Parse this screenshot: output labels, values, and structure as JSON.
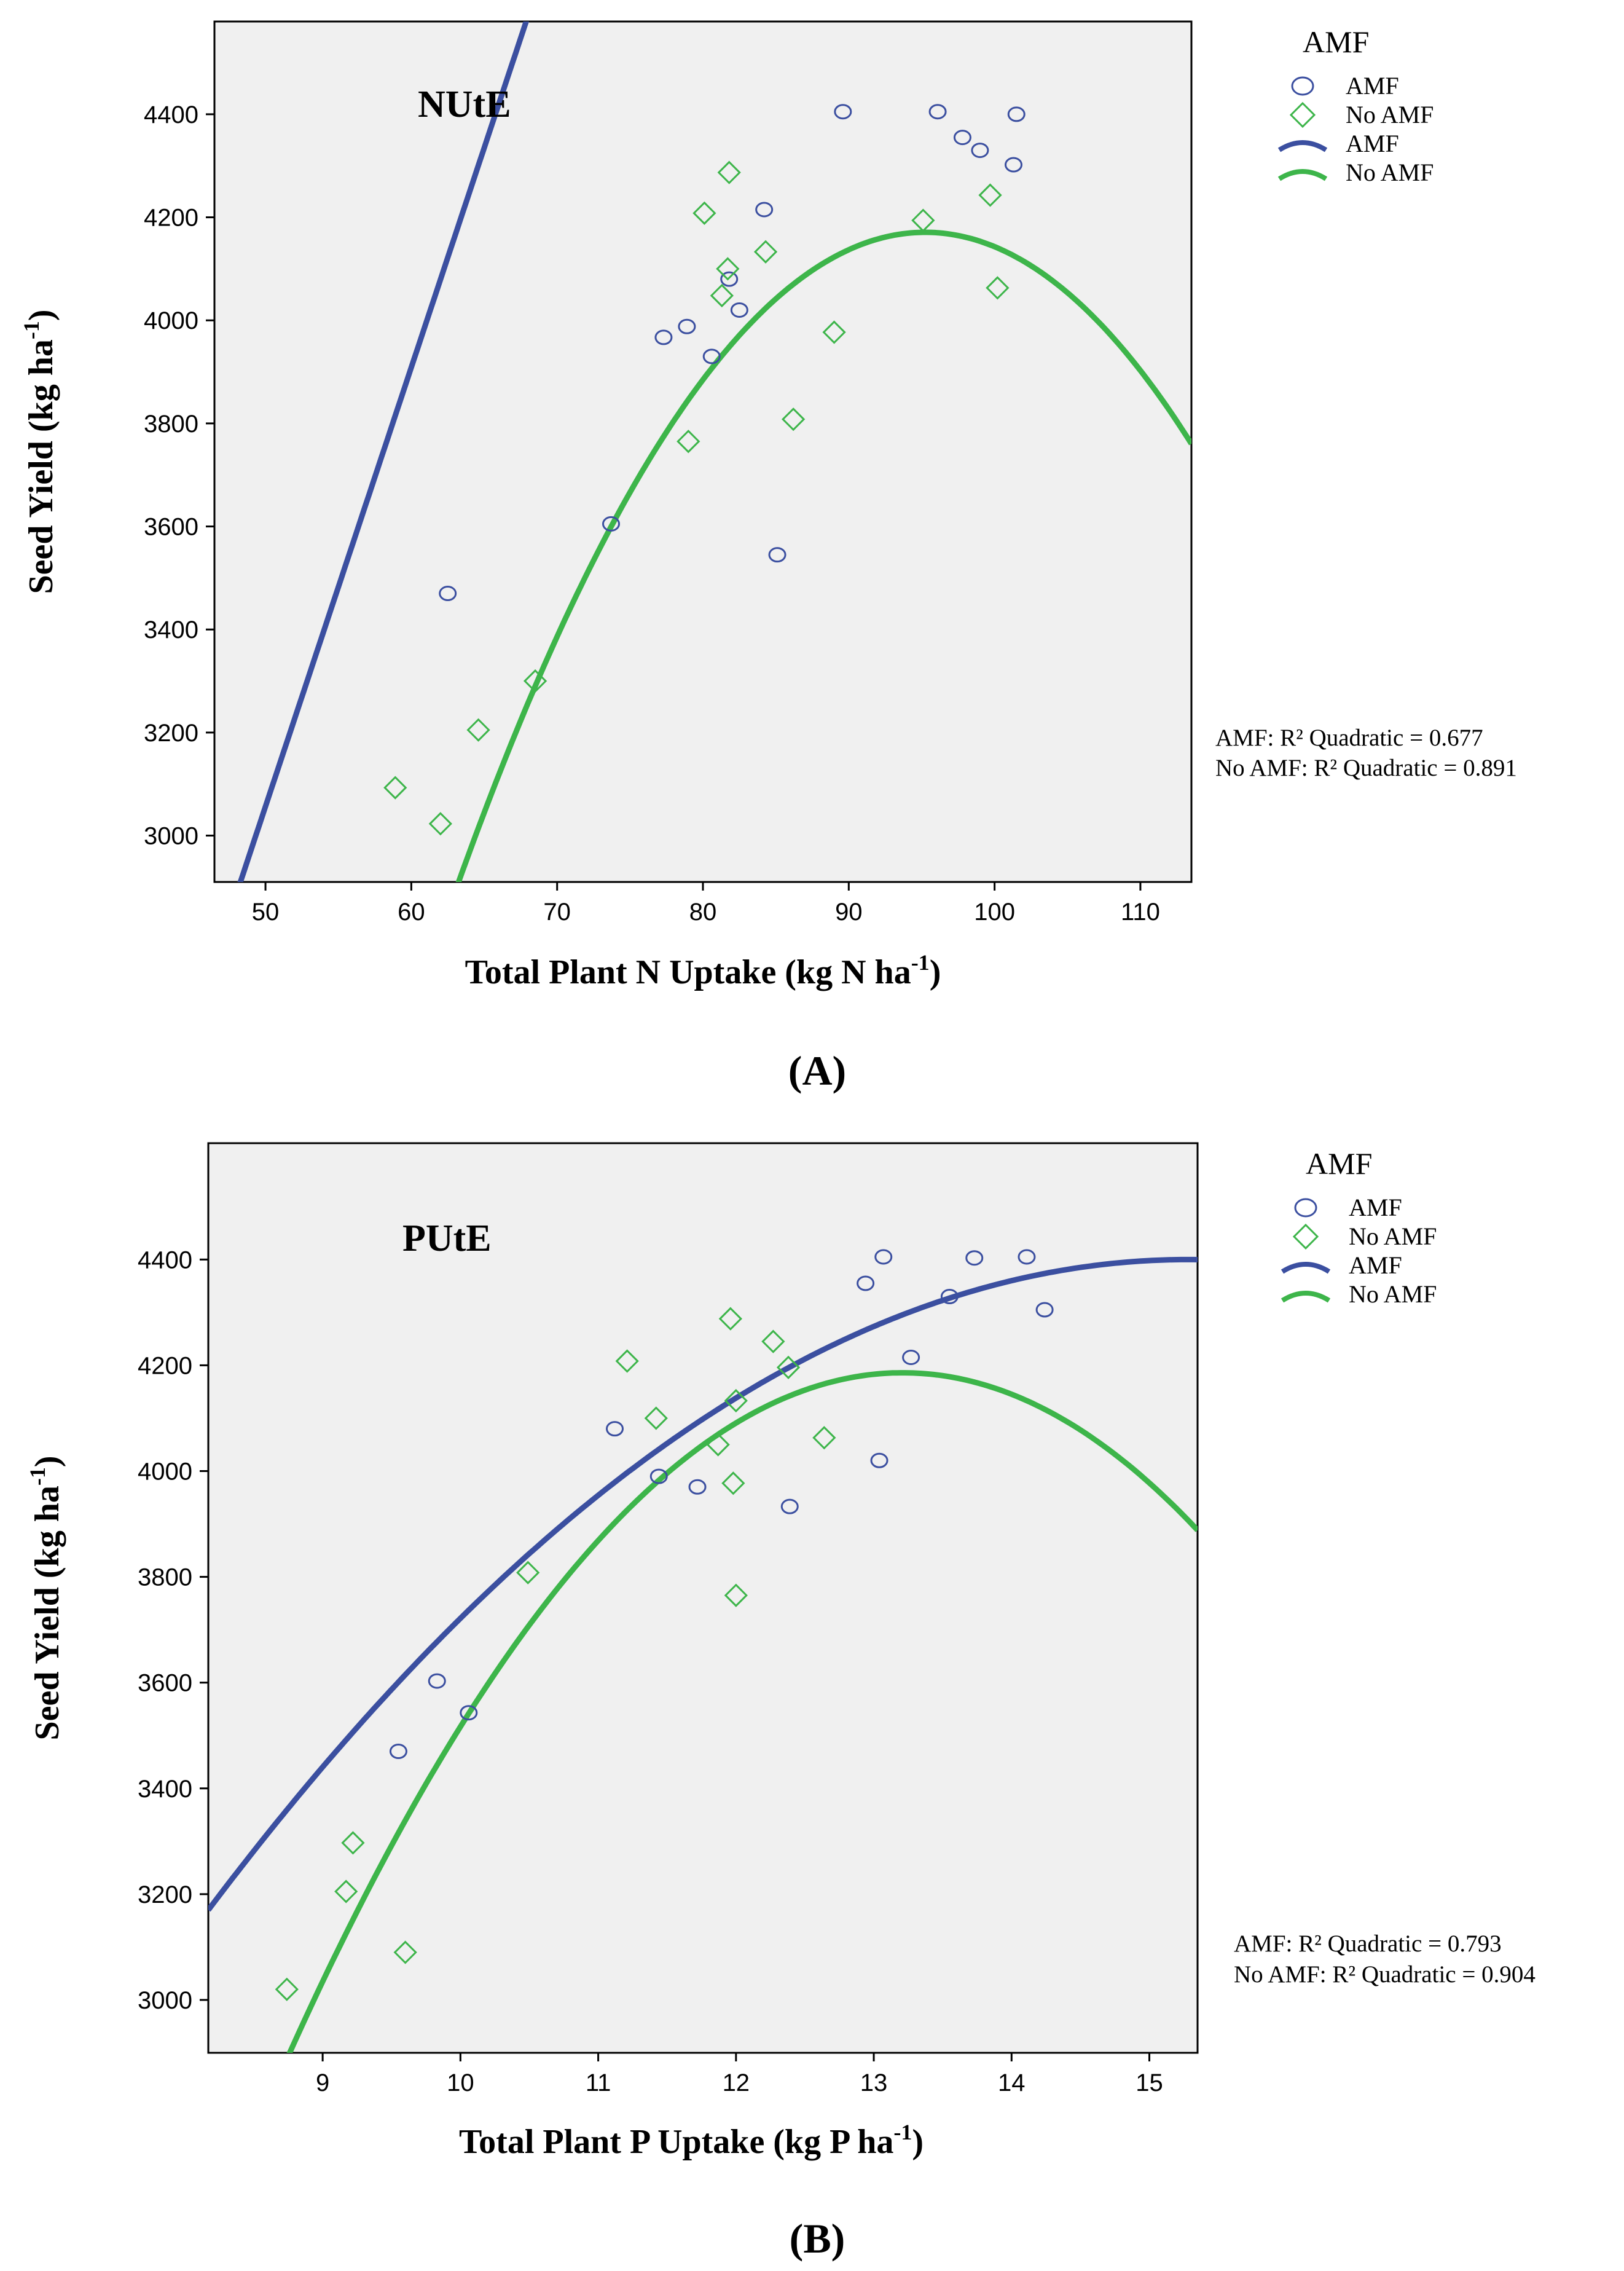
{
  "colors": {
    "amf": "#3B4FA0",
    "no_amf": "#3DB54A",
    "plot_bg": "#F0F0F0",
    "axis": "#000000",
    "text": "#000000"
  },
  "chart_data": [
    {
      "type": "scatter",
      "panel_label": "(A)",
      "title": "NUtE",
      "xlabel": "Total Plant N Uptake (kg N ha",
      "xlabel_sup": "-1",
      "xlabel_close": ")",
      "ylabel": "Seed Yield (kg ha",
      "ylabel_sup": "-1",
      "ylabel_close": ")",
      "xlim": [
        46.5,
        113.5
      ],
      "ylim": [
        2910,
        4580
      ],
      "xticks": [
        50,
        60,
        70,
        80,
        90,
        100,
        110
      ],
      "yticks": [
        3000,
        3200,
        3400,
        3600,
        3800,
        4000,
        4200,
        4400
      ],
      "legend_title": "AMF",
      "legend": [
        {
          "label": "AMF",
          "kind": "circle",
          "series": "amf"
        },
        {
          "label": "No AMF",
          "kind": "diamond",
          "series": "no_amf"
        },
        {
          "label": "AMF",
          "kind": "line",
          "series": "amf"
        },
        {
          "label": "No AMF",
          "kind": "line",
          "series": "no_amf"
        }
      ],
      "r2_text": [
        "AMF: R² Quadratic = 0.677",
        "No AMF: R² Quadratic = 0.891"
      ],
      "series": [
        {
          "name": "AMF",
          "marker": "circle",
          "points": [
            [
              62.5,
              3470
            ],
            [
              73.7,
              3605
            ],
            [
              77.3,
              3967
            ],
            [
              78.9,
              3988
            ],
            [
              80.6,
              3930
            ],
            [
              81.8,
              4080
            ],
            [
              82.5,
              4020
            ],
            [
              84.2,
              4215
            ],
            [
              85.1,
              3545
            ],
            [
              89.6,
              4405
            ],
            [
              96.1,
              4405
            ],
            [
              97.8,
              4355
            ],
            [
              99.0,
              4330
            ],
            [
              101.3,
              4302
            ],
            [
              101.5,
              4400
            ]
          ],
          "fit": {
            "type": "quadratic",
            "coef": [
              -1210,
              85.41,
              -0.00161
            ]
          }
        },
        {
          "name": "No AMF",
          "marker": "diamond",
          "points": [
            [
              58.9,
              3093
            ],
            [
              62.0,
              3023
            ],
            [
              64.6,
              3205
            ],
            [
              68.5,
              3300
            ],
            [
              79.0,
              3765
            ],
            [
              80.1,
              4208
            ],
            [
              81.3,
              4048
            ],
            [
              81.7,
              4100
            ],
            [
              81.8,
              4287
            ],
            [
              84.3,
              4133
            ],
            [
              86.2,
              3808
            ],
            [
              89.0,
              3977
            ],
            [
              95.1,
              4194
            ],
            [
              99.7,
              4243
            ],
            [
              100.2,
              4063
            ]
          ],
          "fit": {
            "type": "quadratic",
            "coef": [
              -7000,
              234.58,
              -1.2315
            ]
          }
        }
      ]
    },
    {
      "type": "scatter",
      "panel_label": "(B)",
      "title": "PUtE",
      "xlabel": "Total Plant P Uptake (kg P ha",
      "xlabel_sup": "-1",
      "xlabel_close": ")",
      "ylabel": "Seed Yield (kg ha",
      "ylabel_sup": "-1",
      "ylabel_close": ")",
      "xlim": [
        8.17,
        15.35
      ],
      "ylim": [
        2900,
        4620
      ],
      "xticks": [
        9,
        10,
        11,
        12,
        13,
        14,
        15
      ],
      "yticks": [
        3000,
        3200,
        3400,
        3600,
        3800,
        4000,
        4200,
        4400
      ],
      "legend_title": "AMF",
      "legend": [
        {
          "label": "AMF",
          "kind": "circle",
          "series": "amf"
        },
        {
          "label": "No AMF",
          "kind": "diamond",
          "series": "no_amf"
        },
        {
          "label": "AMF",
          "kind": "line",
          "series": "amf"
        },
        {
          "label": "No AMF",
          "kind": "line",
          "series": "no_amf"
        }
      ],
      "r2_text": [
        "AMF: R² Quadratic = 0.793",
        "No AMF: R² Quadratic = 0.904"
      ],
      "series": [
        {
          "name": "AMF",
          "marker": "circle",
          "points": [
            [
              9.55,
              3470
            ],
            [
              9.83,
              3603
            ],
            [
              10.06,
              3543
            ],
            [
              11.12,
              4080
            ],
            [
              11.44,
              3990
            ],
            [
              11.72,
              3970
            ],
            [
              12.39,
              3933
            ],
            [
              12.94,
              4355
            ],
            [
              13.04,
              4020
            ],
            [
              13.07,
              4405
            ],
            [
              13.27,
              4215
            ],
            [
              13.55,
              4330
            ],
            [
              13.73,
              4403
            ],
            [
              14.11,
              4405
            ],
            [
              14.24,
              4305
            ]
          ],
          "fit": {
            "type": "quadratic",
            "coef": [
              -1280,
              743.41,
              -24.325
            ]
          }
        },
        {
          "name": "No AMF",
          "marker": "diamond",
          "points": [
            [
              8.74,
              3020
            ],
            [
              9.17,
              3205
            ],
            [
              9.22,
              3297
            ],
            [
              9.6,
              3090
            ],
            [
              10.49,
              3808
            ],
            [
              11.21,
              4208
            ],
            [
              11.42,
              4100
            ],
            [
              11.87,
              4050
            ],
            [
              11.96,
              4288
            ],
            [
              11.98,
              3977
            ],
            [
              12.0,
              4133
            ],
            [
              12.0,
              3765
            ],
            [
              12.27,
              4245
            ],
            [
              12.38,
              4196
            ],
            [
              12.64,
              4063
            ]
          ],
          "fit": {
            "type": "quadratic",
            "coef": [
              -7150,
              1716.32,
              -64.9653
            ]
          }
        }
      ]
    }
  ]
}
